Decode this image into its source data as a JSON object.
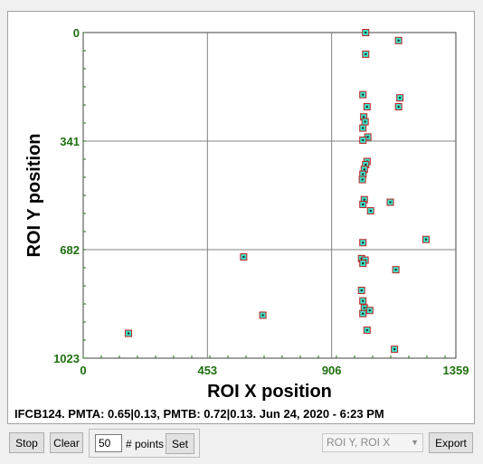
{
  "status": {
    "text": "IFCB124. PMTA: 0.65|0.13, PMTB: 0.72|0.13. Jun 24, 2020 - 6:23 PM"
  },
  "controls": {
    "stop_label": "Stop",
    "clear_label": "Clear",
    "points_value": "50",
    "points_label": "# points",
    "set_label": "Set",
    "axis_select_value": "ROI Y, ROI X",
    "export_label": "Export"
  },
  "colors": {
    "tick_label": "#1f6f10",
    "marker_fill": "#3fe0c8",
    "marker_edge": "#c02020",
    "grid": "#808080"
  },
  "chart_data": {
    "type": "scatter",
    "xlabel": "ROI X position",
    "ylabel": "ROI Y position",
    "xlim": [
      0,
      1359
    ],
    "ylim": [
      0,
      1023
    ],
    "y_inverted": true,
    "x_ticks": [
      "0",
      "453",
      "906",
      "1359"
    ],
    "y_ticks": [
      "0",
      "341",
      "682",
      "1023"
    ],
    "grid": true,
    "points": [
      {
        "x": 1030,
        "y": 0
      },
      {
        "x": 1150,
        "y": 25
      },
      {
        "x": 1030,
        "y": 68
      },
      {
        "x": 1020,
        "y": 195
      },
      {
        "x": 1155,
        "y": 205
      },
      {
        "x": 1035,
        "y": 233
      },
      {
        "x": 1150,
        "y": 233
      },
      {
        "x": 1023,
        "y": 265
      },
      {
        "x": 1028,
        "y": 280
      },
      {
        "x": 1020,
        "y": 300
      },
      {
        "x": 1038,
        "y": 328
      },
      {
        "x": 1020,
        "y": 338
      },
      {
        "x": 1035,
        "y": 405
      },
      {
        "x": 1030,
        "y": 415
      },
      {
        "x": 1025,
        "y": 430
      },
      {
        "x": 1020,
        "y": 445
      },
      {
        "x": 1018,
        "y": 462
      },
      {
        "x": 1025,
        "y": 525
      },
      {
        "x": 1020,
        "y": 540
      },
      {
        "x": 1120,
        "y": 533
      },
      {
        "x": 1048,
        "y": 560
      },
      {
        "x": 1250,
        "y": 650
      },
      {
        "x": 1020,
        "y": 660
      },
      {
        "x": 585,
        "y": 705
      },
      {
        "x": 1015,
        "y": 710
      },
      {
        "x": 1028,
        "y": 715
      },
      {
        "x": 1020,
        "y": 725
      },
      {
        "x": 1140,
        "y": 745
      },
      {
        "x": 1015,
        "y": 810
      },
      {
        "x": 1020,
        "y": 843
      },
      {
        "x": 1025,
        "y": 865
      },
      {
        "x": 1045,
        "y": 873
      },
      {
        "x": 1020,
        "y": 883
      },
      {
        "x": 655,
        "y": 888
      },
      {
        "x": 165,
        "y": 945
      },
      {
        "x": 1035,
        "y": 935
      },
      {
        "x": 1135,
        "y": 995
      }
    ]
  }
}
